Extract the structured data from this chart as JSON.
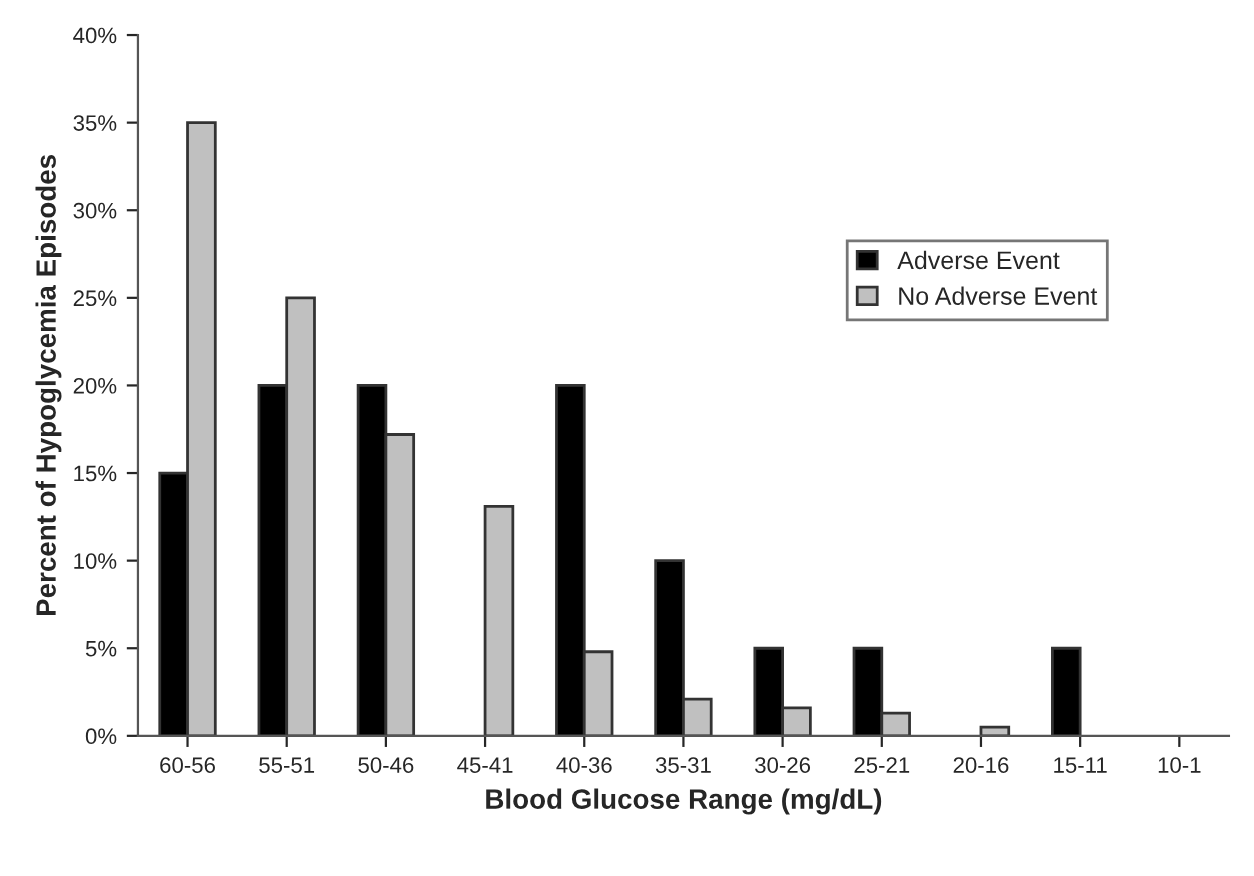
{
  "chart_data": {
    "type": "bar",
    "xlabel": "Blood Glucose Range (mg/dL)",
    "ylabel": "Percent of Hypoglycemia Episodes",
    "categories": [
      "60-56",
      "55-51",
      "50-46",
      "45-41",
      "40-36",
      "35-31",
      "30-26",
      "25-21",
      "20-16",
      "15-11",
      "10-1"
    ],
    "series": [
      {
        "name": "Adverse Event",
        "color": "#000000",
        "values": [
          15,
          20,
          20,
          0,
          20,
          10,
          5,
          5,
          0,
          5,
          0
        ]
      },
      {
        "name": "No Adverse Event",
        "color": "#c0c0c0",
        "values": [
          35,
          25,
          17.2,
          13.1,
          4.8,
          2.1,
          1.6,
          1.3,
          0.5,
          0,
          0
        ]
      }
    ],
    "ylim": [
      0,
      40
    ],
    "yticks": [
      {
        "value": 0,
        "label": "0%"
      },
      {
        "value": 5,
        "label": "5%"
      },
      {
        "value": 10,
        "label": "10%"
      },
      {
        "value": 15,
        "label": "15%"
      },
      {
        "value": 20,
        "label": "20%"
      },
      {
        "value": 25,
        "label": "25%"
      },
      {
        "value": 30,
        "label": "30%"
      },
      {
        "value": 35,
        "label": "35%"
      },
      {
        "value": 40,
        "label": "40%"
      }
    ],
    "grid": false,
    "legend": "right"
  }
}
